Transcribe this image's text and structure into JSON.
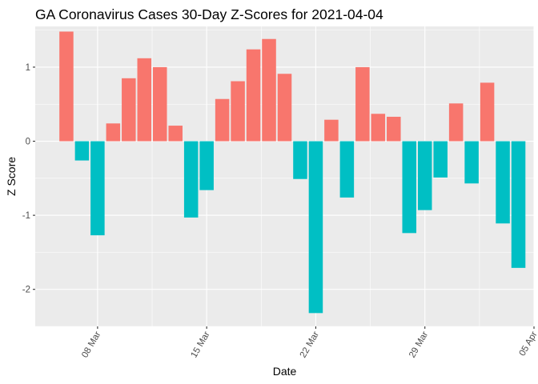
{
  "chart_data": {
    "type": "bar",
    "title": "GA Coronavirus Cases 30-Day Z-Scores for 2021-04-04",
    "xlabel": "Date",
    "ylabel": "Z Score",
    "x_ticks": [
      "08 Mar",
      "15 Mar",
      "22 Mar",
      "29 Mar",
      "05 Apr"
    ],
    "x_tick_dates": [
      "2021-03-08",
      "2021-03-15",
      "2021-03-22",
      "2021-03-29",
      "2021-04-05"
    ],
    "y_ticks": [
      -2,
      -1,
      0,
      1
    ],
    "x_range": [
      "2021-03-04",
      "2021-04-05"
    ],
    "ylim": [
      -2.5,
      1.55
    ],
    "grid": true,
    "legend": "none",
    "colors": {
      "positive": "#F8766D",
      "negative": "#00BFC4",
      "panel": "#EBEBEB",
      "grid": "#FFFFFF"
    },
    "dates": [
      "2021-03-06",
      "2021-03-07",
      "2021-03-08",
      "2021-03-09",
      "2021-03-10",
      "2021-03-11",
      "2021-03-12",
      "2021-03-13",
      "2021-03-14",
      "2021-03-15",
      "2021-03-16",
      "2021-03-17",
      "2021-03-18",
      "2021-03-19",
      "2021-03-20",
      "2021-03-21",
      "2021-03-22",
      "2021-03-23",
      "2021-03-24",
      "2021-03-25",
      "2021-03-26",
      "2021-03-27",
      "2021-03-28",
      "2021-03-29",
      "2021-03-30",
      "2021-03-31",
      "2021-04-01",
      "2021-04-02",
      "2021-04-03",
      "2021-04-04"
    ],
    "values": [
      1.48,
      -0.26,
      -1.27,
      0.24,
      0.85,
      1.12,
      1.0,
      0.21,
      -1.03,
      -0.66,
      0.57,
      0.81,
      1.24,
      1.38,
      0.91,
      -0.51,
      -2.32,
      0.29,
      -0.76,
      1.0,
      0.37,
      0.33,
      -1.24,
      -0.93,
      -0.49,
      0.51,
      -0.57,
      0.79,
      -1.11,
      -1.71
    ]
  }
}
